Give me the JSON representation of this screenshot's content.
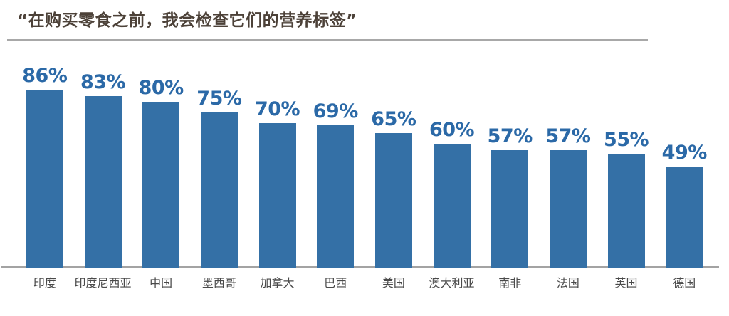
{
  "title": "“在购买零食之前，我会检查它们的营养标签”",
  "colors": {
    "bar": "#3470a6",
    "value_label": "#2b69a7",
    "title_text": "#4c4138",
    "axis_line": "#a3a3a3",
    "title_rule": "#a8a8a8",
    "country_label": "#4a4a4a",
    "background": "#ffffff"
  },
  "chart_data": {
    "type": "bar",
    "title": "“在购买零食之前，我会检查它们的营养标签”",
    "categories": [
      "印度",
      "印度尼西亚",
      "中国",
      "墨西哥",
      "加拿大",
      "巴西",
      "美国",
      "澳大利亚",
      "南非",
      "法国",
      "英国",
      "德国"
    ],
    "values": [
      86,
      83,
      80,
      75,
      70,
      69,
      65,
      60,
      57,
      57,
      55,
      49
    ],
    "value_labels": [
      "86%",
      "83%",
      "80%",
      "75%",
      "70%",
      "69%",
      "65%",
      "60%",
      "57%",
      "57%",
      "55%",
      "49%"
    ],
    "xlabel": "",
    "ylabel": "",
    "ylim": [
      0,
      100
    ],
    "grid": false,
    "legend": "none",
    "value_label_position": "above-bar",
    "category_label_position": "below-axis"
  }
}
